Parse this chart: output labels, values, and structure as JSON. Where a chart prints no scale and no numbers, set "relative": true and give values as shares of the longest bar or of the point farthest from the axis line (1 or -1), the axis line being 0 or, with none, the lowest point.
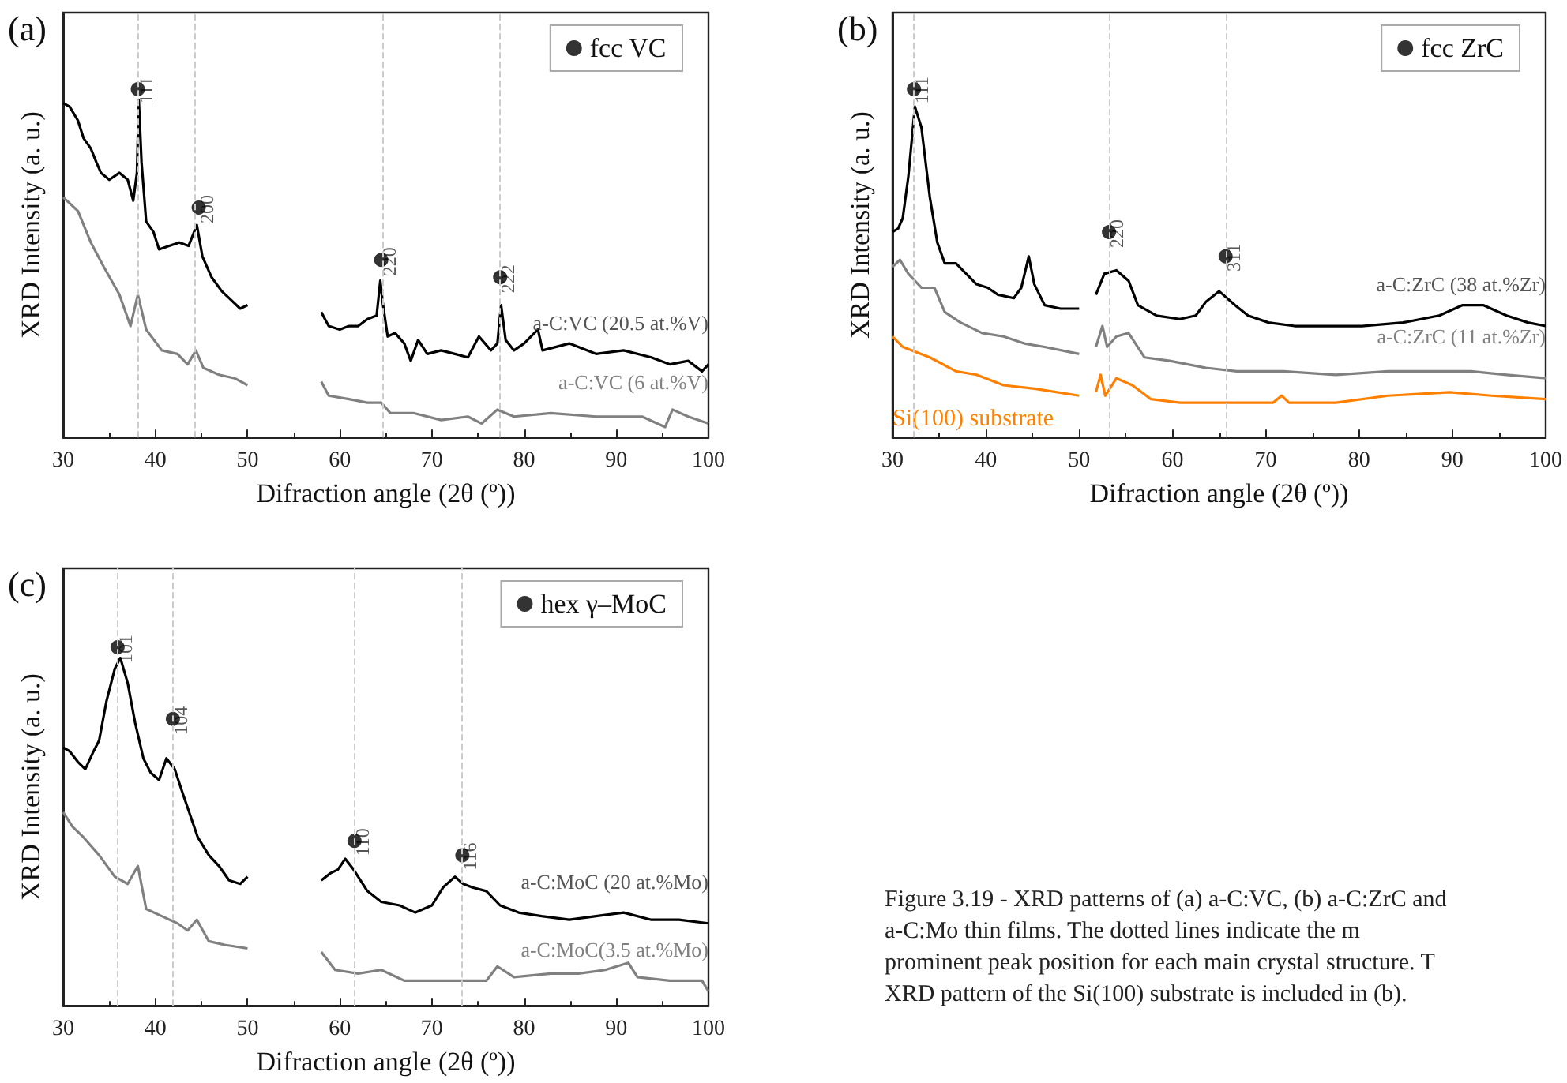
{
  "chart_data": [
    {
      "type": "line",
      "title": "(a)",
      "xlabel": "Difraction angle (2θ (º))",
      "ylabel": "XRD Intensity (a. u.)",
      "relative": true,
      "xlim": [
        30,
        100
      ],
      "xticks": [
        30,
        40,
        50,
        60,
        70,
        80,
        90,
        100
      ],
      "tick_labels": "x",
      "legend": "top right",
      "marker": "none",
      "line_style": "solid",
      "series": [
        {
          "name": "a-C:VC (20.5 at.%V)",
          "color": "#000000",
          "x": [
            30,
            30.7,
            31.6,
            32.2,
            33,
            33.6,
            34.1,
            35,
            36.1,
            37,
            37.6,
            38,
            38.2,
            38.5,
            39,
            39.8,
            40.4,
            41.5,
            42.6,
            43.6,
            44.5,
            45.1,
            46.1,
            47.2,
            48.4,
            49.2,
            50,
            54,
            58,
            58.8,
            60,
            61,
            62,
            63,
            64,
            64.4,
            64.7,
            65.2,
            66,
            67,
            67.7,
            68.5,
            69.5,
            71,
            72.5,
            73.9,
            75.1,
            76.4,
            77.1,
            77.5,
            78,
            78.9,
            80,
            81.5,
            82,
            84.9,
            87.8,
            90.8,
            93.8,
            95.8,
            97.8,
            99.3,
            100
          ],
          "values": [
            0.96,
            0.95,
            0.91,
            0.86,
            0.83,
            0.79,
            0.76,
            0.74,
            0.76,
            0.74,
            0.68,
            0.76,
            0.97,
            0.79,
            0.62,
            0.59,
            0.54,
            0.55,
            0.56,
            0.55,
            0.61,
            0.52,
            0.46,
            0.42,
            0.39,
            0.37,
            0.38,
            null,
            0.36,
            0.32,
            0.31,
            0.32,
            0.32,
            0.34,
            0.35,
            0.45,
            0.38,
            0.29,
            0.3,
            0.27,
            0.22,
            0.28,
            0.24,
            0.25,
            0.24,
            0.23,
            0.29,
            0.25,
            0.27,
            0.38,
            0.28,
            0.25,
            0.27,
            0.31,
            0.25,
            0.27,
            0.24,
            0.25,
            0.23,
            0.21,
            0.22,
            0.19,
            0.21
          ]
        },
        {
          "name": "a-C:VC (6 at.%V)",
          "color": "#808080",
          "x": [
            30,
            31.6,
            33,
            34.4,
            36.1,
            37.3,
            38.1,
            39,
            40.7,
            42.4,
            43.5,
            44.4,
            45.2,
            46.9,
            48.6,
            50,
            54,
            58,
            58.8,
            61,
            63,
            64.5,
            65.5,
            68,
            71,
            73.9,
            75.4,
            77.1,
            78.9,
            82.9,
            87.8,
            92.8,
            95.3,
            96.1,
            97.8,
            100
          ],
          "values": [
            0.69,
            0.65,
            0.56,
            0.49,
            0.41,
            0.32,
            0.41,
            0.31,
            0.25,
            0.24,
            0.21,
            0.25,
            0.2,
            0.18,
            0.17,
            0.15,
            null,
            0.16,
            0.12,
            0.11,
            0.1,
            0.1,
            0.07,
            0.07,
            0.05,
            0.06,
            0.04,
            0.08,
            0.06,
            0.07,
            0.06,
            0.06,
            0.03,
            0.08,
            0.06,
            0.04
          ]
        },
        {
          "type": "scatter",
          "name": "fcc VC",
          "color": "#000000",
          "marker": "circle",
          "x": [
            38.1,
            44.7,
            64.5,
            77.4
          ],
          "values": [
            1,
            0.66,
            0.51,
            0.46
          ]
        }
      ],
      "annotations": [
        {
          "text": "111",
          "x": 38.1,
          "y": 1
        },
        {
          "text": "200",
          "x": 44.7,
          "y": 0.66
        },
        {
          "text": "220",
          "x": 64.5,
          "y": 0.51
        },
        {
          "text": "222",
          "x": 77.4,
          "y": 0.46
        }
      ],
      "ref_lines": [
        {
          "axis": "x",
          "value": 38.1,
          "color": "#cccccc",
          "line_style": "dashed"
        },
        {
          "axis": "x",
          "value": 44.2,
          "color": "#cccccc",
          "line_style": "dashed"
        },
        {
          "axis": "x",
          "value": 64.6,
          "color": "#cccccc",
          "line_style": "dashed"
        },
        {
          "axis": "x",
          "value": 77.4,
          "color": "#cccccc",
          "line_style": "dashed"
        }
      ]
    },
    {
      "type": "line",
      "title": "(b)",
      "xlabel": "Difraction angle (2θ (º))",
      "ylabel": "XRD Intensity (a. u.)",
      "relative": true,
      "xlim": [
        30,
        100
      ],
      "xticks": [
        30,
        40,
        50,
        60,
        70,
        80,
        90,
        100
      ],
      "tick_labels": "x",
      "legend": "top right",
      "marker": "none",
      "line_style": "solid",
      "series": [
        {
          "name": "a-C:ZrC (38 at.%Zr)",
          "color": "#000000",
          "x": [
            30,
            30.6,
            31.1,
            31.7,
            32.4,
            33.1,
            34,
            34.8,
            35.6,
            36.8,
            37.9,
            39,
            40.2,
            41.3,
            43,
            43.8,
            44.6,
            45.2,
            46.3,
            48,
            50,
            51,
            51.8,
            52.7,
            54,
            55.3,
            56.3,
            58.3,
            60.8,
            62.5,
            63.6,
            65,
            66.7,
            68.1,
            70.3,
            73.1,
            76.7,
            80.3,
            84.7,
            88.6,
            91.1,
            93.3,
            95.8,
            98.1,
            100
          ],
          "values": [
            0.59,
            0.6,
            0.63,
            0.75,
            0.95,
            0.89,
            0.69,
            0.56,
            0.5,
            0.5,
            0.47,
            0.44,
            0.43,
            0.41,
            0.4,
            0.43,
            0.52,
            0.44,
            0.38,
            0.37,
            0.37,
            null,
            0.41,
            0.47,
            0.48,
            0.45,
            0.38,
            0.35,
            0.34,
            0.35,
            0.39,
            0.42,
            0.38,
            0.35,
            0.33,
            0.32,
            0.32,
            0.32,
            0.33,
            0.35,
            0.38,
            0.38,
            0.35,
            0.33,
            0.32
          ]
        },
        {
          "name": "a-C:ZrC (11 at.%Zr)",
          "color": "#808080",
          "x": [
            30,
            30.8,
            31.7,
            33.1,
            34.5,
            35.6,
            37.3,
            39.6,
            41.9,
            44.1,
            46.3,
            50,
            51,
            51.8,
            52.5,
            53,
            54,
            55.3,
            57,
            59.7,
            63.6,
            66.9,
            71.9,
            77.5,
            83.1,
            88.6,
            92,
            95.8,
            100
          ],
          "values": [
            0.49,
            0.51,
            0.47,
            0.43,
            0.43,
            0.36,
            0.33,
            0.3,
            0.29,
            0.27,
            0.26,
            0.24,
            null,
            0.26,
            0.32,
            0.26,
            0.29,
            0.3,
            0.23,
            0.22,
            0.2,
            0.19,
            0.19,
            0.18,
            0.19,
            0.19,
            0.19,
            0.18,
            0.17
          ]
        },
        {
          "name": "Si(100) substrate",
          "color": "#ff8000",
          "x": [
            30,
            31.1,
            34,
            36.8,
            39,
            41.9,
            45.2,
            50,
            51,
            51.8,
            52.3,
            52.8,
            54,
            55.7,
            57.7,
            60.8,
            66.4,
            70.8,
            71.7,
            72.5,
            77.5,
            83.1,
            89.7,
            94.2,
            100
          ],
          "values": [
            0.29,
            0.26,
            0.23,
            0.19,
            0.18,
            0.15,
            0.14,
            0.12,
            null,
            0.13,
            0.18,
            0.12,
            0.17,
            0.15,
            0.11,
            0.1,
            0.1,
            0.1,
            0.12,
            0.1,
            0.1,
            0.12,
            0.13,
            0.12,
            0.11
          ]
        },
        {
          "type": "scatter",
          "name": "fcc ZrC",
          "color": "#000000",
          "marker": "circle",
          "x": [
            32.3,
            53.2,
            65.7
          ],
          "values": [
            1,
            0.59,
            0.52
          ]
        }
      ],
      "annotations": [
        {
          "text": "111",
          "x": 32.3,
          "y": 1
        },
        {
          "text": "220",
          "x": 53.2,
          "y": 0.59
        },
        {
          "text": "311",
          "x": 65.7,
          "y": 0.52
        }
      ],
      "ref_lines": [
        {
          "axis": "x",
          "value": 32.3,
          "color": "#cccccc",
          "line_style": "dashed"
        },
        {
          "axis": "x",
          "value": 53.2,
          "color": "#cccccc",
          "line_style": "dashed"
        },
        {
          "axis": "x",
          "value": 65.7,
          "color": "#cccccc",
          "line_style": "dashed"
        }
      ]
    },
    {
      "type": "line",
      "title": "(c)",
      "xlabel": "Difraction angle (2θ (º))",
      "ylabel": "XRD Intensity (a. u.)",
      "relative": true,
      "xlim": [
        30,
        100
      ],
      "xticks": [
        30,
        40,
        50,
        60,
        70,
        80,
        90,
        100
      ],
      "tick_labels": "x",
      "legend": "top right",
      "marker": "none",
      "line_style": "solid",
      "series": [
        {
          "name": "a-C:MoC (20 at.%Mo)",
          "color": "#000000",
          "x": [
            30,
            30.7,
            31.6,
            32.4,
            33.3,
            33.9,
            34.7,
            35.6,
            36.2,
            37,
            37.8,
            38.7,
            39.5,
            40.4,
            41.2,
            42.1,
            43,
            43.8,
            44.6,
            45.8,
            46.9,
            48,
            49.2,
            50,
            54,
            58,
            59,
            59.8,
            60.6,
            61.5,
            63,
            64.5,
            66.5,
            68.2,
            70,
            71.2,
            72.5,
            73.4,
            74.4,
            75.9,
            77.4,
            79.4,
            81.9,
            84.9,
            87.8,
            90.8,
            93.8,
            96.8,
            100
          ],
          "values": [
            0.72,
            0.71,
            0.68,
            0.66,
            0.71,
            0.74,
            0.85,
            0.94,
            0.97,
            0.9,
            0.79,
            0.69,
            0.65,
            0.63,
            0.69,
            0.66,
            0.59,
            0.53,
            0.47,
            0.42,
            0.39,
            0.35,
            0.34,
            0.36,
            null,
            0.35,
            0.37,
            0.38,
            0.41,
            0.38,
            0.32,
            0.29,
            0.28,
            0.26,
            0.28,
            0.33,
            0.36,
            0.34,
            0.33,
            0.32,
            0.28,
            0.26,
            0.25,
            0.24,
            0.25,
            0.26,
            0.24,
            0.24,
            0.23
          ]
        },
        {
          "name": "a-C:MoC(3.5 at.%Mo)",
          "color": "#808080",
          "x": [
            30,
            31,
            32.2,
            33.9,
            35.6,
            37,
            38.1,
            39,
            40.7,
            42.4,
            43.5,
            44.5,
            45.8,
            47.5,
            50,
            54,
            58,
            59.5,
            62,
            64.5,
            67,
            70,
            73,
            75.9,
            77.1,
            78.9,
            82.9,
            85.9,
            88.8,
            91.3,
            92.3,
            95.8,
            99.3,
            100
          ],
          "values": [
            0.54,
            0.5,
            0.47,
            0.42,
            0.36,
            0.34,
            0.39,
            0.27,
            0.25,
            0.23,
            0.21,
            0.24,
            0.18,
            0.17,
            0.16,
            null,
            0.15,
            0.1,
            0.09,
            0.1,
            0.07,
            0.07,
            0.07,
            0.07,
            0.11,
            0.08,
            0.09,
            0.09,
            0.1,
            0.12,
            0.08,
            0.07,
            0.07,
            0.04
          ]
        },
        {
          "type": "scatter",
          "name": "hex γ–MoC",
          "color": "#000000",
          "marker": "circle",
          "x": [
            35.9,
            41.9,
            61.6,
            73.3
          ],
          "values": [
            1,
            0.8,
            0.46,
            0.42
          ]
        }
      ],
      "annotations": [
        {
          "text": "101",
          "x": 35.9,
          "y": 1
        },
        {
          "text": "104",
          "x": 41.9,
          "y": 0.8
        },
        {
          "text": "110",
          "x": 61.6,
          "y": 0.46
        },
        {
          "text": "116",
          "x": 73.3,
          "y": 0.42
        }
      ],
      "ref_lines": [
        {
          "axis": "x",
          "value": 35.9,
          "color": "#cccccc",
          "line_style": "dashed"
        },
        {
          "axis": "x",
          "value": 41.9,
          "color": "#cccccc",
          "line_style": "dashed"
        },
        {
          "axis": "x",
          "value": 61.6,
          "color": "#cccccc",
          "line_style": "dashed"
        },
        {
          "axis": "x",
          "value": 73.3,
          "color": "#cccccc",
          "line_style": "dashed"
        }
      ]
    },
    {
      "type": "other",
      "annotations": [
        "Figure 3.19 - XRD patterns of (a) a-C:VC, (b) a-C:ZrC and",
        "a-C:Mo thin films. The dotted lines indicate the m",
        "prominent peak position for each main crystal structure. T",
        "XRD pattern of the Si(100) substrate is included in (b)."
      ]
    }
  ]
}
